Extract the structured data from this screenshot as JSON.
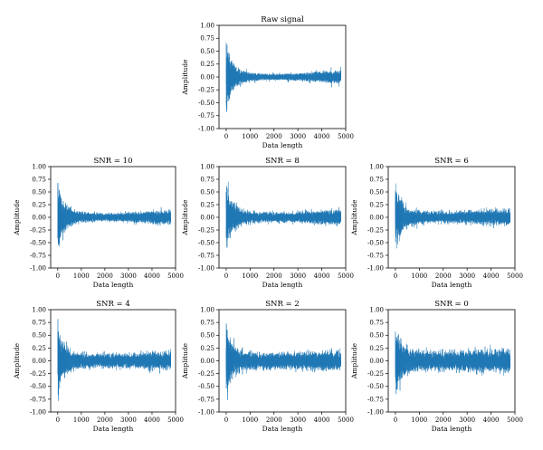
{
  "figure": {
    "line_color": "#1f77b4",
    "panel_order": [
      "raw",
      "snr10",
      "snr8",
      "snr6",
      "snr4",
      "snr2",
      "snr0"
    ]
  },
  "chart_data": [
    {
      "id": "raw",
      "type": "line",
      "title": "Raw signal",
      "xlabel": "Data length",
      "ylabel": "Amplitude",
      "xlim": [
        -300,
        5000
      ],
      "ylim": [
        -1.0,
        1.0
      ],
      "xticks": [
        0,
        1000,
        2000,
        3000,
        4000,
        5000
      ],
      "yticks": [
        -1.0,
        -0.75,
        -0.5,
        -0.25,
        0.0,
        0.25,
        0.5,
        0.75,
        1.0
      ],
      "x_range": [
        0,
        4800
      ],
      "n_points": 4800,
      "envelope": {
        "x": [
          0,
          50,
          150,
          300,
          600,
          1000,
          1500,
          2000,
          2500,
          3000,
          3500,
          4000,
          4500,
          4800
        ],
        "y": [
          0.8,
          0.65,
          0.45,
          0.3,
          0.15,
          0.1,
          0.07,
          0.06,
          0.07,
          0.08,
          0.1,
          0.12,
          0.13,
          0.14
        ]
      },
      "noise_std": 0.0
    },
    {
      "id": "snr10",
      "type": "line",
      "title": "SNR = 10",
      "xlabel": "Data length",
      "ylabel": "Amplitude",
      "xlim": [
        -300,
        5000
      ],
      "ylim": [
        -1.0,
        1.0
      ],
      "xticks": [
        0,
        1000,
        2000,
        3000,
        4000,
        5000
      ],
      "yticks": [
        -1.0,
        -0.75,
        -0.5,
        -0.25,
        0.0,
        0.25,
        0.5,
        0.75,
        1.0
      ],
      "x_range": [
        0,
        4800
      ],
      "n_points": 4800,
      "envelope": {
        "x": [
          0,
          50,
          150,
          300,
          600,
          1000,
          1500,
          2000,
          2500,
          3000,
          3500,
          4000,
          4500,
          4800
        ],
        "y": [
          0.8,
          0.65,
          0.45,
          0.3,
          0.15,
          0.1,
          0.07,
          0.06,
          0.07,
          0.08,
          0.1,
          0.12,
          0.13,
          0.14
        ]
      },
      "noise_std": 0.03
    },
    {
      "id": "snr8",
      "type": "line",
      "title": "SNR = 8",
      "xlabel": "Data length",
      "ylabel": "Amplitude",
      "xlim": [
        -300,
        5000
      ],
      "ylim": [
        -1.0,
        1.0
      ],
      "xticks": [
        0,
        1000,
        2000,
        3000,
        4000,
        5000
      ],
      "yticks": [
        -1.0,
        -0.75,
        -0.5,
        -0.25,
        0.0,
        0.25,
        0.5,
        0.75,
        1.0
      ],
      "x_range": [
        0,
        4800
      ],
      "n_points": 4800,
      "envelope": {
        "x": [
          0,
          50,
          150,
          300,
          600,
          1000,
          1500,
          2000,
          2500,
          3000,
          3500,
          4000,
          4500,
          4800
        ],
        "y": [
          0.8,
          0.65,
          0.45,
          0.3,
          0.15,
          0.1,
          0.07,
          0.06,
          0.07,
          0.08,
          0.1,
          0.12,
          0.13,
          0.14
        ]
      },
      "noise_std": 0.04
    },
    {
      "id": "snr6",
      "type": "line",
      "title": "SNR = 6",
      "xlabel": "Data length",
      "ylabel": "Amplitude",
      "xlim": [
        -300,
        5000
      ],
      "ylim": [
        -1.0,
        1.0
      ],
      "xticks": [
        0,
        1000,
        2000,
        3000,
        4000,
        5000
      ],
      "yticks": [
        -1.0,
        -0.75,
        -0.5,
        -0.25,
        0.0,
        0.25,
        0.5,
        0.75,
        1.0
      ],
      "x_range": [
        0,
        4800
      ],
      "n_points": 4800,
      "envelope": {
        "x": [
          0,
          50,
          150,
          300,
          600,
          1000,
          1500,
          2000,
          2500,
          3000,
          3500,
          4000,
          4500,
          4800
        ],
        "y": [
          0.8,
          0.65,
          0.45,
          0.3,
          0.15,
          0.1,
          0.07,
          0.06,
          0.07,
          0.08,
          0.1,
          0.12,
          0.13,
          0.14
        ]
      },
      "noise_std": 0.05
    },
    {
      "id": "snr4",
      "type": "line",
      "title": "SNR = 4",
      "xlabel": "Data length",
      "ylabel": "Amplitude",
      "xlim": [
        -300,
        5000
      ],
      "ylim": [
        -1.0,
        1.0
      ],
      "xticks": [
        0,
        1000,
        2000,
        3000,
        4000,
        5000
      ],
      "yticks": [
        -1.0,
        -0.75,
        -0.5,
        -0.25,
        0.0,
        0.25,
        0.5,
        0.75,
        1.0
      ],
      "x_range": [
        0,
        4800
      ],
      "n_points": 4800,
      "envelope": {
        "x": [
          0,
          50,
          150,
          300,
          600,
          1000,
          1500,
          2000,
          2500,
          3000,
          3500,
          4000,
          4500,
          4800
        ],
        "y": [
          0.8,
          0.65,
          0.45,
          0.3,
          0.15,
          0.1,
          0.07,
          0.06,
          0.07,
          0.08,
          0.1,
          0.12,
          0.13,
          0.14
        ]
      },
      "noise_std": 0.065
    },
    {
      "id": "snr2",
      "type": "line",
      "title": "SNR = 2",
      "xlabel": "Data length",
      "ylabel": "Amplitude",
      "xlim": [
        -300,
        5000
      ],
      "ylim": [
        -1.0,
        1.0
      ],
      "xticks": [
        0,
        1000,
        2000,
        3000,
        4000,
        5000
      ],
      "yticks": [
        -1.0,
        -0.75,
        -0.5,
        -0.25,
        0.0,
        0.25,
        0.5,
        0.75,
        1.0
      ],
      "x_range": [
        0,
        4800
      ],
      "n_points": 4800,
      "envelope": {
        "x": [
          0,
          50,
          150,
          300,
          600,
          1000,
          1500,
          2000,
          2500,
          3000,
          3500,
          4000,
          4500,
          4800
        ],
        "y": [
          0.8,
          0.65,
          0.45,
          0.3,
          0.15,
          0.1,
          0.07,
          0.06,
          0.07,
          0.08,
          0.1,
          0.12,
          0.13,
          0.14
        ]
      },
      "noise_std": 0.08
    },
    {
      "id": "snr0",
      "type": "line",
      "title": "SNR = 0",
      "xlabel": "Data length",
      "ylabel": "Amplitude",
      "xlim": [
        -300,
        5000
      ],
      "ylim": [
        -1.0,
        1.0
      ],
      "xticks": [
        0,
        1000,
        2000,
        3000,
        4000,
        5000
      ],
      "yticks": [
        -1.0,
        -0.75,
        -0.5,
        -0.25,
        0.0,
        0.25,
        0.5,
        0.75,
        1.0
      ],
      "x_range": [
        0,
        4800
      ],
      "n_points": 4800,
      "envelope": {
        "x": [
          0,
          50,
          150,
          300,
          600,
          1000,
          1500,
          2000,
          2500,
          3000,
          3500,
          4000,
          4500,
          4800
        ],
        "y": [
          0.8,
          0.65,
          0.45,
          0.3,
          0.15,
          0.1,
          0.07,
          0.06,
          0.07,
          0.08,
          0.1,
          0.12,
          0.13,
          0.14
        ]
      },
      "noise_std": 0.1
    }
  ]
}
